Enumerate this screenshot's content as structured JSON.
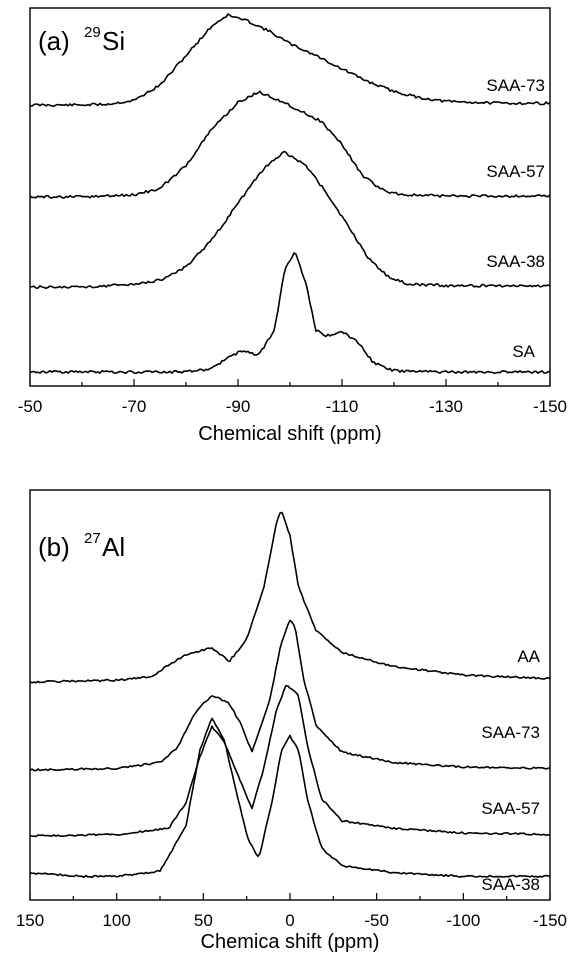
{
  "chart_data": [
    {
      "type": "line",
      "panel_label": "(a)",
      "nucleus_mass": "29",
      "nucleus_symbol": "Si",
      "xlabel": "Chemical shift (ppm)",
      "ylabel": "",
      "xlim": [
        -50,
        -150
      ],
      "xticks": [
        "-50",
        "-70",
        "-90",
        "-110",
        "-130",
        "-150"
      ],
      "grid": false,
      "series": [
        {
          "name": "SAA-73",
          "x": [
            -50,
            -60,
            -65,
            -70,
            -75,
            -80,
            -85,
            -88,
            -92,
            -96,
            -100,
            -105,
            -110,
            -115,
            -120,
            -125,
            -130,
            -140,
            -150
          ],
          "y": [
            0,
            0,
            0.01,
            0.05,
            0.22,
            0.55,
            0.88,
            1.0,
            0.93,
            0.82,
            0.68,
            0.55,
            0.4,
            0.26,
            0.15,
            0.08,
            0.04,
            0.02,
            0.02
          ]
        },
        {
          "name": "SAA-57",
          "x": [
            -50,
            -60,
            -70,
            -75,
            -80,
            -85,
            -90,
            -94,
            -98,
            -102,
            -106,
            -110,
            -114,
            -118,
            -122,
            -130,
            -140,
            -150
          ],
          "y": [
            0,
            0,
            0.02,
            0.08,
            0.3,
            0.65,
            0.9,
            1.0,
            0.92,
            0.82,
            0.72,
            0.5,
            0.2,
            0.06,
            0.02,
            0.01,
            0.01,
            0.01
          ]
        },
        {
          "name": "SAA-38",
          "x": [
            -50,
            -60,
            -70,
            -75,
            -80,
            -85,
            -90,
            -95,
            -99,
            -103,
            -107,
            -111,
            -115,
            -119,
            -123,
            -130,
            -140,
            -150
          ],
          "y": [
            0,
            0,
            0.02,
            0.05,
            0.15,
            0.35,
            0.62,
            0.88,
            1.0,
            0.9,
            0.7,
            0.46,
            0.22,
            0.07,
            0.02,
            0.01,
            0.01,
            0.01
          ]
        },
        {
          "name": "SA",
          "x": [
            -50,
            -70,
            -80,
            -85,
            -88,
            -91,
            -94,
            -97,
            -99,
            -101,
            -103,
            -105,
            -107,
            -110,
            -113,
            -116,
            -120,
            -130,
            -150
          ],
          "y": [
            0,
            0,
            0,
            0.03,
            0.12,
            0.18,
            0.14,
            0.35,
            0.85,
            1.0,
            0.75,
            0.35,
            0.3,
            0.34,
            0.25,
            0.08,
            0.01,
            0,
            0
          ]
        }
      ]
    },
    {
      "type": "line",
      "panel_label": "(b)",
      "nucleus_mass": "27",
      "nucleus_symbol": "Al",
      "xlabel": "Chemica shift (ppm)",
      "ylabel": "",
      "xlim": [
        150,
        -150
      ],
      "xticks": [
        "150",
        "100",
        "50",
        "0",
        "-50",
        "-100",
        "-150"
      ],
      "grid": false,
      "series": [
        {
          "name": "AA",
          "x": [
            150,
            100,
            80,
            70,
            60,
            45,
            35,
            25,
            15,
            8,
            5,
            0,
            -5,
            -15,
            -30,
            -60,
            -100,
            -150
          ],
          "y": [
            0,
            0.01,
            0.03,
            0.1,
            0.16,
            0.2,
            0.12,
            0.25,
            0.55,
            0.92,
            1.0,
            0.85,
            0.55,
            0.3,
            0.17,
            0.09,
            0.04,
            0.02
          ]
        },
        {
          "name": "SAA-73",
          "x": [
            150,
            100,
            75,
            65,
            55,
            45,
            35,
            28,
            22,
            12,
            5,
            0,
            -3,
            -8,
            -15,
            -30,
            -60,
            -100,
            -150
          ],
          "y": [
            0,
            0.01,
            0.05,
            0.15,
            0.38,
            0.5,
            0.44,
            0.3,
            0.12,
            0.45,
            0.85,
            1.0,
            0.95,
            0.6,
            0.3,
            0.12,
            0.05,
            0.02,
            0.01
          ]
        },
        {
          "name": "SAA-57",
          "x": [
            150,
            100,
            70,
            60,
            52,
            45,
            38,
            30,
            22,
            15,
            8,
            2,
            -5,
            -10,
            -18,
            -30,
            -60,
            -100,
            -150
          ],
          "y": [
            0,
            0.01,
            0.05,
            0.22,
            0.52,
            0.72,
            0.62,
            0.4,
            0.18,
            0.45,
            0.82,
            1.0,
            0.92,
            0.6,
            0.25,
            0.1,
            0.05,
            0.02,
            0.01
          ]
        },
        {
          "name": "SAA-38",
          "x": [
            150,
            120,
            100,
            75,
            60,
            52,
            45,
            38,
            30,
            24,
            18,
            10,
            5,
            0,
            -5,
            -10,
            -18,
            -30,
            -60,
            -100,
            -150
          ],
          "y": [
            0.04,
            0.02,
            0.02,
            0.05,
            0.3,
            0.72,
            0.9,
            0.78,
            0.45,
            0.22,
            0.12,
            0.45,
            0.72,
            0.8,
            0.72,
            0.45,
            0.18,
            0.08,
            0.04,
            0.02,
            0.02
          ]
        }
      ]
    }
  ]
}
